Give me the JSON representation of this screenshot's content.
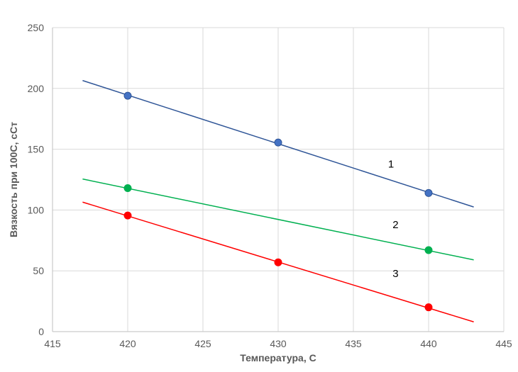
{
  "chart_data": {
    "type": "scatter",
    "xlabel": "Температура, С",
    "ylabel": "Вязкость при 100С, сСт",
    "xlim": [
      415,
      445
    ],
    "ylim": [
      0,
      250
    ],
    "x_ticks": [
      "415",
      "420",
      "425",
      "430",
      "435",
      "440",
      "445"
    ],
    "y_ticks": [
      "0",
      "50",
      "100",
      "150",
      "200",
      "250"
    ],
    "grid": true,
    "series": [
      {
        "name": "1",
        "color": "#2f5597",
        "marker_color": "#4472c4",
        "points": [
          [
            420,
            194
          ],
          [
            430,
            155.5
          ],
          [
            440,
            114
          ]
        ],
        "trendline": [
          [
            417,
            206.5
          ],
          [
            443,
            102.5
          ]
        ]
      },
      {
        "name": "2",
        "color": "#00b050",
        "marker_color": "#00b050",
        "points": [
          [
            420,
            118
          ],
          [
            440,
            67
          ]
        ],
        "trendline": [
          [
            417,
            125.5
          ],
          [
            443,
            59
          ]
        ]
      },
      {
        "name": "3",
        "color": "#ff0000",
        "marker_color": "#ff0000",
        "points": [
          [
            420,
            95.5
          ],
          [
            430,
            57
          ],
          [
            440,
            20
          ]
        ],
        "trendline": [
          [
            417,
            106.5
          ],
          [
            443,
            8
          ]
        ]
      }
    ]
  }
}
